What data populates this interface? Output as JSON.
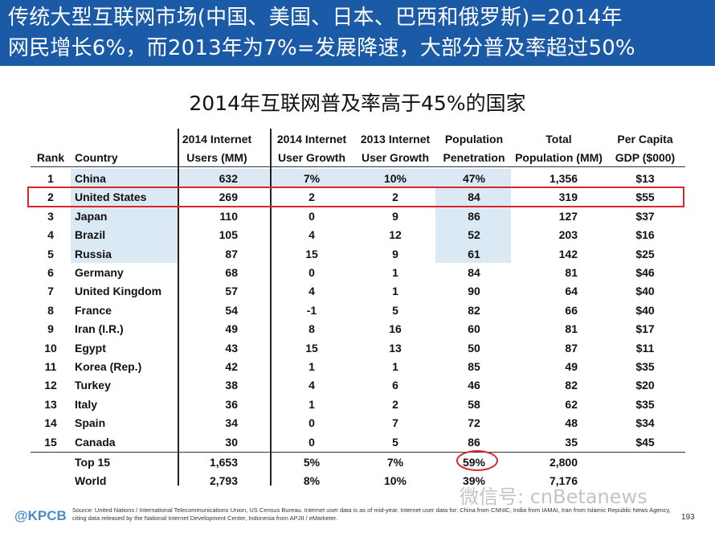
{
  "header": {
    "line1": "传统大型互联网市场(中国、美国、日本、巴西和俄罗斯)=2014年",
    "line2": "网民增长6%，而2013年为7%=发展降速，大部分普及率超过50%"
  },
  "subtitle": "2014年互联网普及率高于45%的国家",
  "table": {
    "headers": [
      {
        "line1": "",
        "line2": "Rank"
      },
      {
        "line1": "",
        "line2": "Country"
      },
      {
        "line1": "2014 Internet",
        "line2": "Users (MM)"
      },
      {
        "line1": "2014 Internet",
        "line2": "User Growth"
      },
      {
        "line1": "2013 Internet",
        "line2": "User Growth"
      },
      {
        "line1": "Population",
        "line2": "Penetration"
      },
      {
        "line1": "Total",
        "line2": "Population (MM)"
      },
      {
        "line1": "Per Capita",
        "line2": "GDP ($000)"
      }
    ],
    "rows": [
      [
        "1",
        "China",
        "632",
        "7%",
        "10%",
        "47%",
        "1,356",
        "$13"
      ],
      [
        "2",
        "United States",
        "269",
        "2",
        "2",
        "84",
        "319",
        "$55"
      ],
      [
        "3",
        "Japan",
        "110",
        "0",
        "9",
        "86",
        "127",
        "$37"
      ],
      [
        "4",
        "Brazil",
        "105",
        "4",
        "12",
        "52",
        "203",
        "$16"
      ],
      [
        "5",
        "Russia",
        "87",
        "15",
        "9",
        "61",
        "142",
        "$25"
      ],
      [
        "6",
        "Germany",
        "68",
        "0",
        "1",
        "84",
        "81",
        "$46"
      ],
      [
        "7",
        "United Kingdom",
        "57",
        "4",
        "1",
        "90",
        "64",
        "$40"
      ],
      [
        "8",
        "France",
        "54",
        "-1",
        "5",
        "82",
        "66",
        "$40"
      ],
      [
        "9",
        "Iran (I.R.)",
        "49",
        "8",
        "16",
        "60",
        "81",
        "$17"
      ],
      [
        "10",
        "Egypt",
        "43",
        "15",
        "13",
        "50",
        "87",
        "$11"
      ],
      [
        "11",
        "Korea (Rep.)",
        "42",
        "1",
        "1",
        "85",
        "49",
        "$35"
      ],
      [
        "12",
        "Turkey",
        "38",
        "4",
        "6",
        "46",
        "82",
        "$20"
      ],
      [
        "13",
        "Italy",
        "36",
        "1",
        "2",
        "58",
        "62",
        "$35"
      ],
      [
        "14",
        "Spain",
        "34",
        "0",
        "7",
        "72",
        "48",
        "$34"
      ],
      [
        "15",
        "Canada",
        "30",
        "0",
        "5",
        "86",
        "35",
        "$45"
      ]
    ],
    "totals": [
      [
        "",
        "Top 15",
        "1,653",
        "5%",
        "7%",
        "59%",
        "2,800",
        ""
      ],
      [
        "",
        "World",
        "2,793",
        "8%",
        "10%",
        "39%",
        "7,176",
        ""
      ]
    ],
    "colors": {
      "highlight": "#dbe9f4",
      "accent_red": "#d9262b",
      "header_blue": "#1b5aa6"
    }
  },
  "footer": {
    "logo": "@KPCB",
    "source": "Source: United Nations / International Telecommunications Union, US Census Bureau. Internet user data is as of mid-year. Internet user data for: China from CNNIC, India from IAMAI, Iran from Islamic Republic News Agency, citing data released by the National Internet Development Center, Indonesia from APJII / eMarketer.",
    "page_number": "193",
    "watermark": "微信号: cnBetanews"
  }
}
